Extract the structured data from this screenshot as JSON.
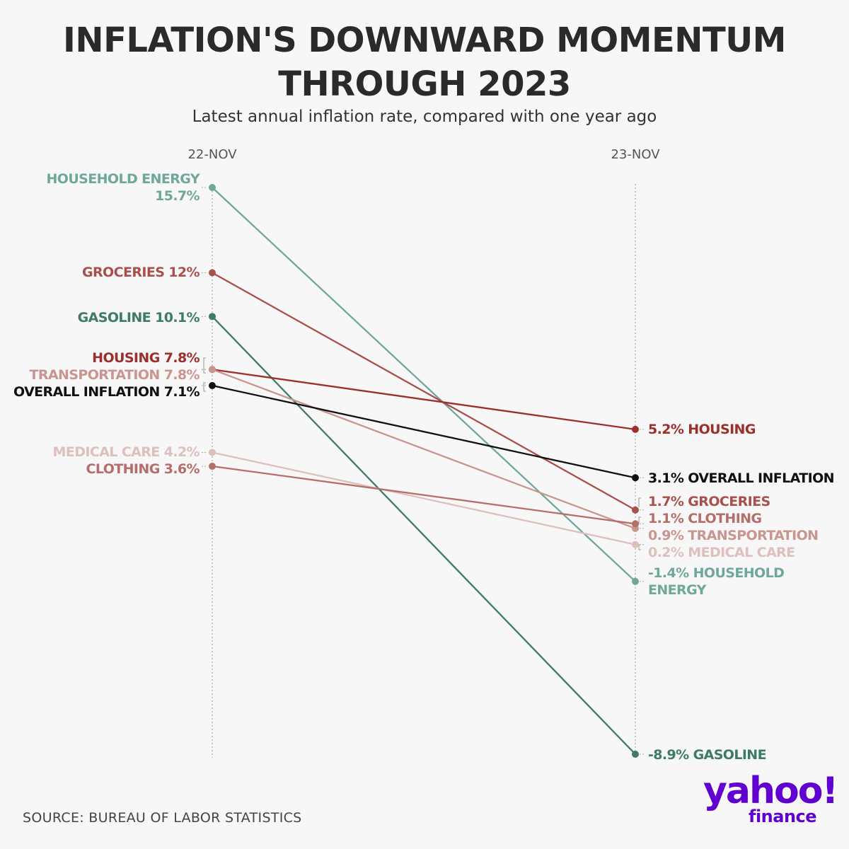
{
  "title_line1": "INFLATION'S DOWNWARD MOMENTUM",
  "title_line2": "THROUGH 2023",
  "subtitle": "Latest annual inflation rate, compared with one year ago",
  "source": "SOURCE: BUREAU OF LABOR STATISTICS",
  "logo": {
    "word": "yahoo!",
    "sub": "finance"
  },
  "chart_data": {
    "type": "slope",
    "x": [
      "22-NOV",
      "23-NOV"
    ],
    "series": [
      {
        "name": "HOUSEHOLD ENERGY",
        "start": 15.7,
        "end": -1.4,
        "start_label": "HOUSEHOLD ENERGY",
        "start_value": "15.7%",
        "end_label": "-1.4% HOUSEHOLD",
        "end_label2": "ENERGY",
        "color": "#6fa89a"
      },
      {
        "name": "GROCERIES",
        "start": 12,
        "end": 1.7,
        "start_label": "GROCERIES 12%",
        "end_label": "1.7% GROCERIES",
        "color": "#a8504c"
      },
      {
        "name": "GASOLINE",
        "start": 10.1,
        "end": -8.9,
        "start_label": "GASOLINE 10.1%",
        "end_label": "-8.9% GASOLINE",
        "color": "#3d7b66"
      },
      {
        "name": "HOUSING",
        "start": 7.8,
        "end": 5.2,
        "start_label": "HOUSING 7.8%",
        "end_label": "5.2% HOUSING",
        "color": "#9c2f2a"
      },
      {
        "name": "TRANSPORTATION",
        "start": 7.8,
        "end": 0.9,
        "start_label": "TRANSPORTATION 7.8%",
        "end_label": "0.9% TRANSPORTATION",
        "color": "#c9968f"
      },
      {
        "name": "OVERALL INFLATION",
        "start": 7.1,
        "end": 3.1,
        "start_label": "OVERALL INFLATION 7.1%",
        "end_label": "3.1% OVERALL INFLATION",
        "color": "#111111"
      },
      {
        "name": "MEDICAL CARE",
        "start": 4.2,
        "end": 0.2,
        "start_label": "MEDICAL CARE 4.2%",
        "end_label": "0.2% MEDICAL CARE",
        "color": "#ddc0bc"
      },
      {
        "name": "CLOTHING",
        "start": 3.6,
        "end": 1.1,
        "start_label": "CLOTHING 3.6%",
        "end_label": "1.1% CLOTHING",
        "color": "#b56e69"
      }
    ],
    "ylim": [
      -8.9,
      15.7
    ]
  }
}
